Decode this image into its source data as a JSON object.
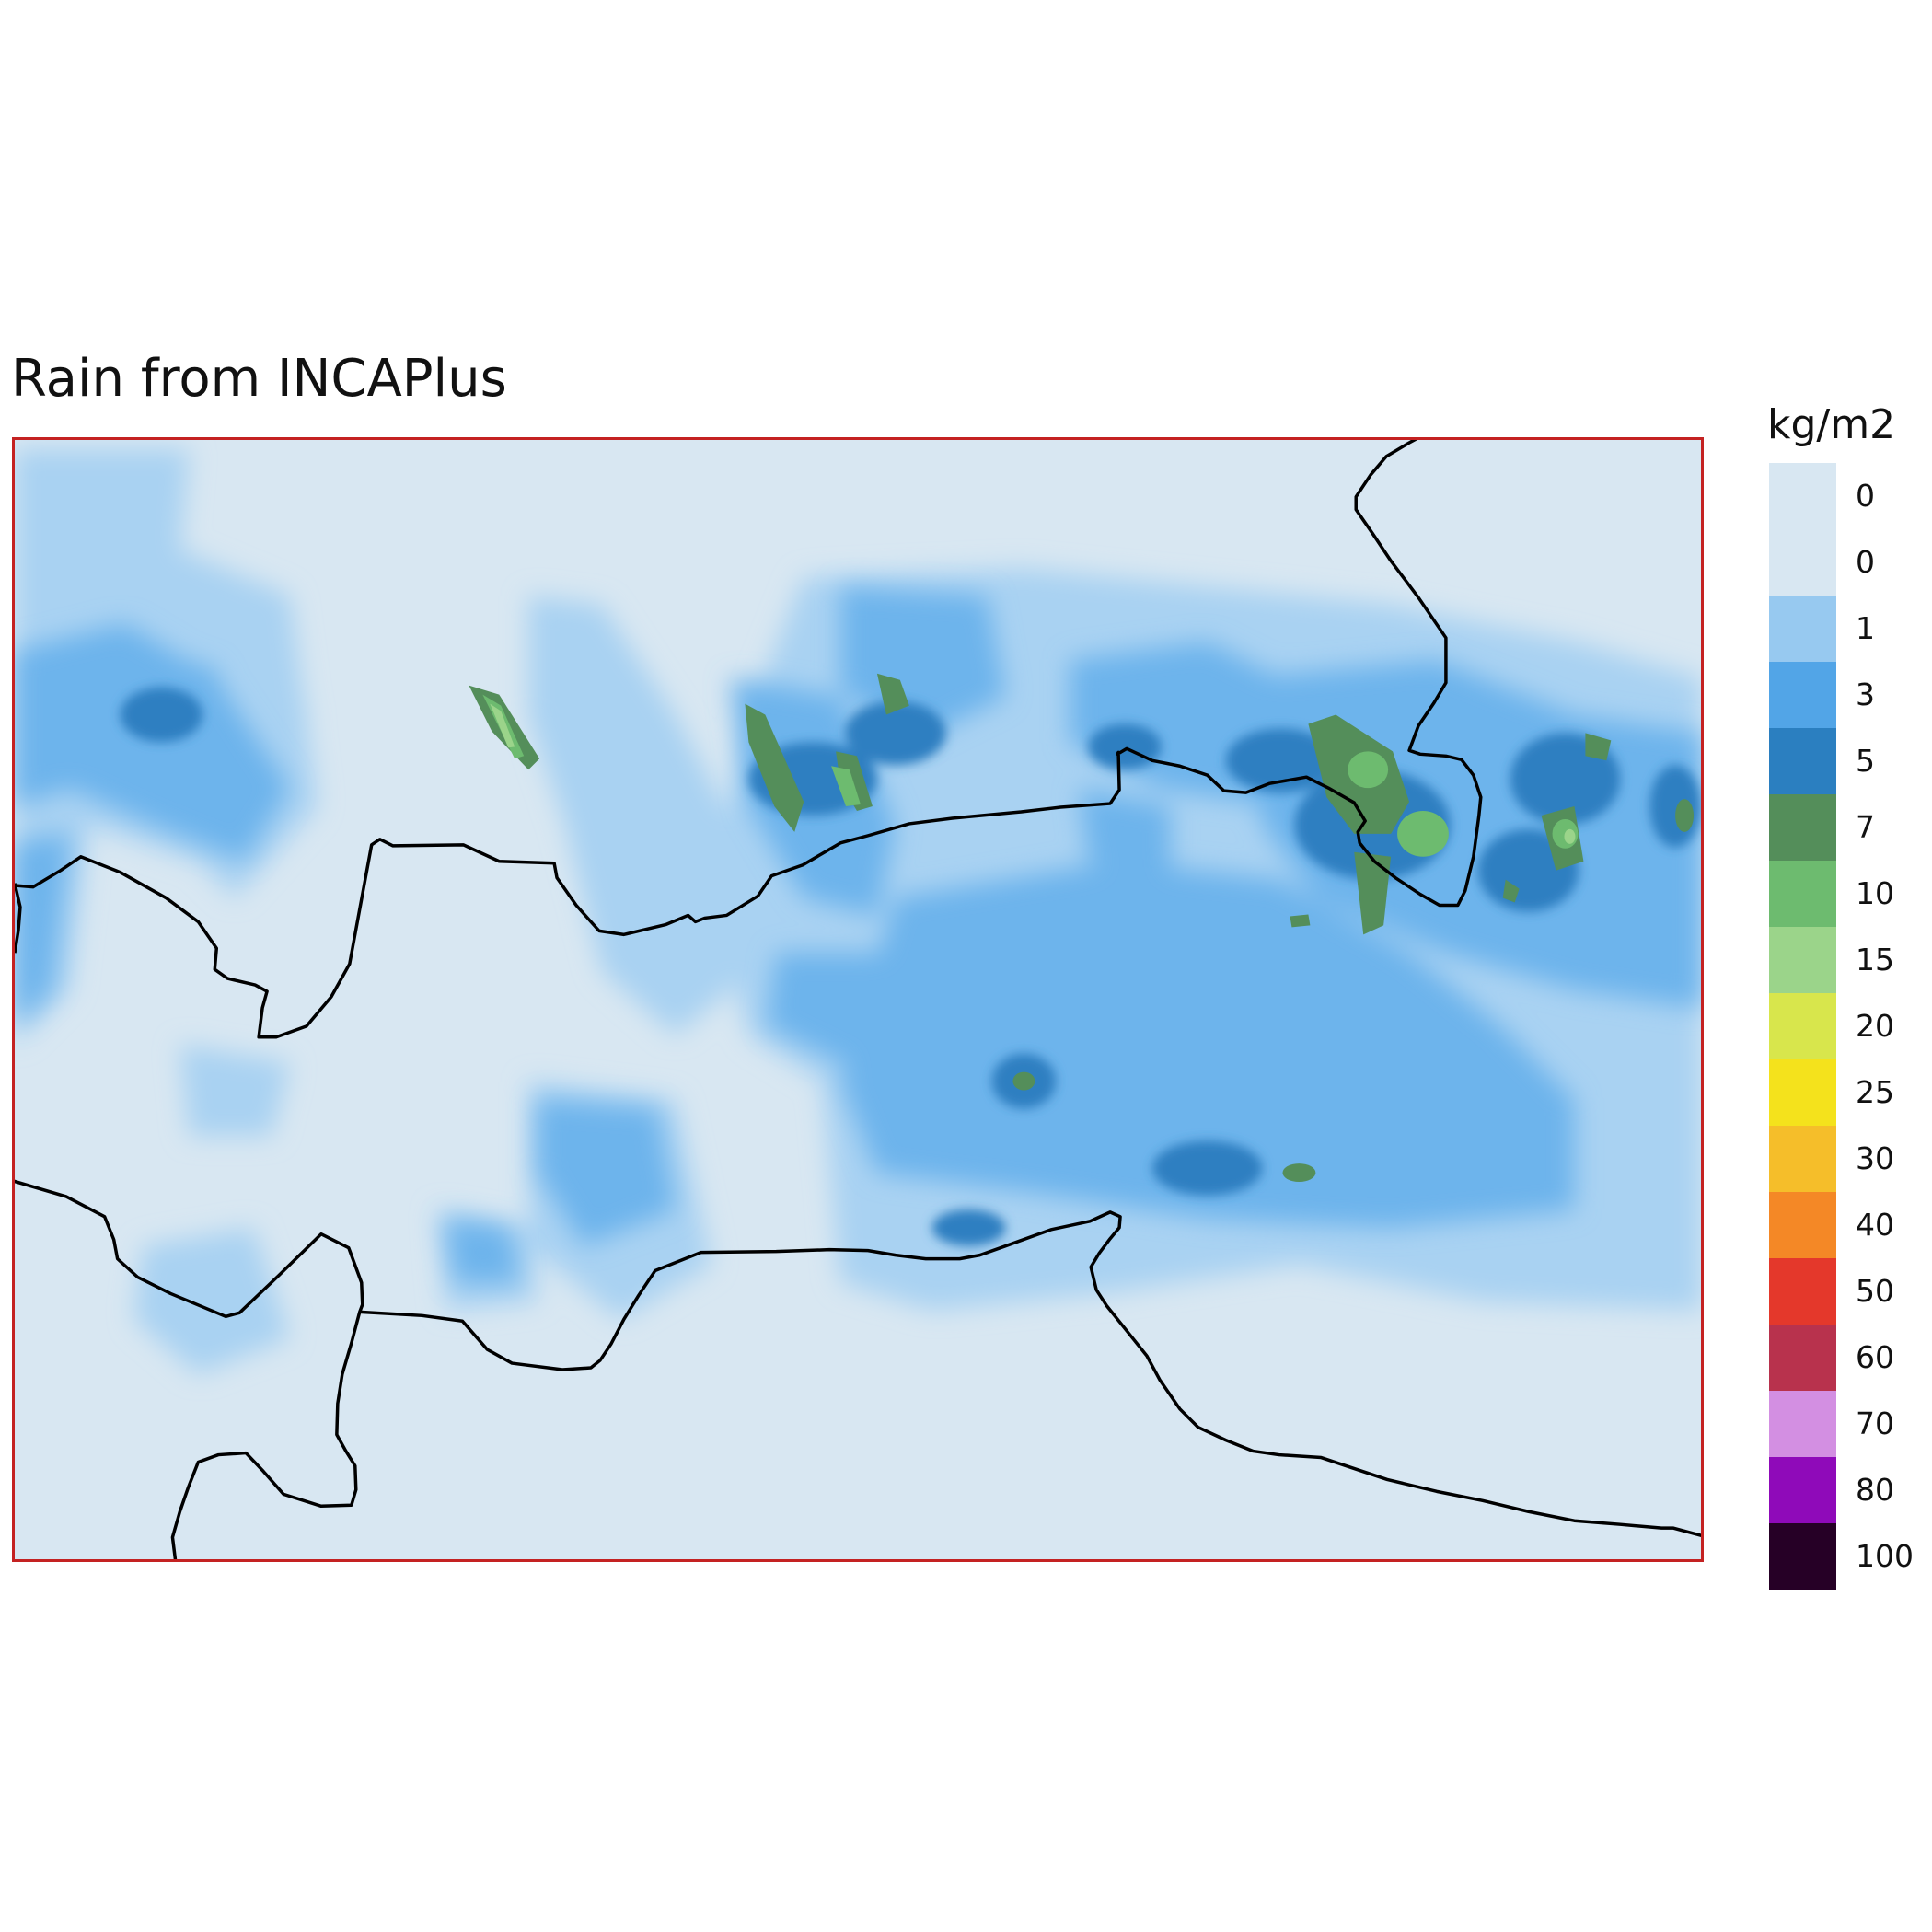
{
  "title": "Rain from INCAPlus",
  "colorbar": {
    "unit": "kg/m2",
    "levels": [
      {
        "label": "0",
        "color": "#d8e7f2"
      },
      {
        "label": "0",
        "color": "#d8e7f2"
      },
      {
        "label": "1",
        "color": "#97c9f0"
      },
      {
        "label": "3",
        "color": "#52a5e7"
      },
      {
        "label": "5",
        "color": "#2b7fc0"
      },
      {
        "label": "7",
        "color": "#548e5a"
      },
      {
        "label": "10",
        "color": "#6dbb6f"
      },
      {
        "label": "15",
        "color": "#9bd48a"
      },
      {
        "label": "20",
        "color": "#d8e64c"
      },
      {
        "label": "25",
        "color": "#f4e21c"
      },
      {
        "label": "30",
        "color": "#f5be2a"
      },
      {
        "label": "40",
        "color": "#f48826"
      },
      {
        "label": "50",
        "color": "#e4382b"
      },
      {
        "label": "60",
        "color": "#b8324d"
      },
      {
        "label": "70",
        "color": "#d38fe2"
      },
      {
        "label": "80",
        "color": "#8f0ab9"
      },
      {
        "label": "100",
        "color": "#260026"
      }
    ]
  },
  "map": {
    "background_color": "#d8e7f2",
    "border_color": "#c42222",
    "coastline_color": "#000000"
  }
}
